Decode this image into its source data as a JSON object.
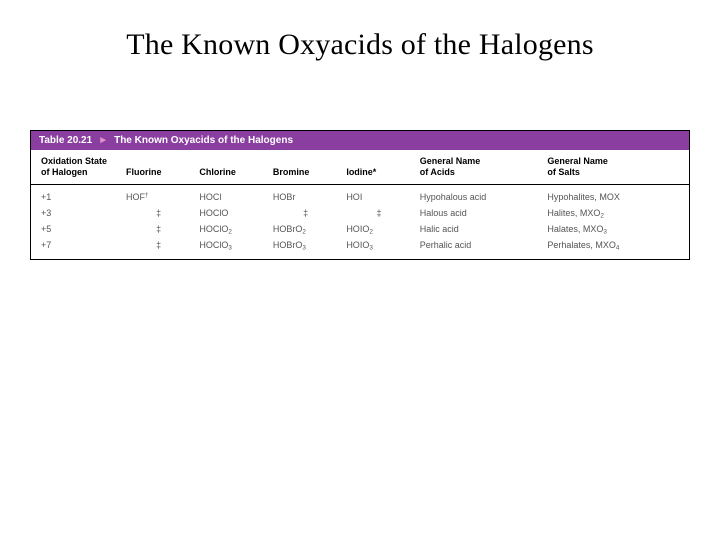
{
  "slide": {
    "title": "The Known Oxyacids of the Halogens"
  },
  "table": {
    "number": "Table 20.21",
    "caption_title": "The Known Oxyacids of the Halogens",
    "header_bg": "#8a3fa0",
    "header_fg": "#ffffff",
    "arrow_color": "#e48fd0",
    "columns": [
      "Oxidation State of Halogen",
      "Fluorine",
      "Chlorine",
      "Bromine",
      "Iodine*",
      "General Name of Acids",
      "General Name of Salts"
    ],
    "rows": [
      {
        "oxidation": "+1",
        "fluorine": "HOF†",
        "chlorine": "HOCl",
        "bromine": "HOBr",
        "iodine": "HOI",
        "acid_name": "Hypohalous acid",
        "salt_name": "Hypohalites, MOX"
      },
      {
        "oxidation": "+3",
        "fluorine": "‡",
        "chlorine": "HOClO",
        "bromine": "‡",
        "iodine": "‡",
        "acid_name": "Halous acid",
        "salt_name": "Halites, MXO₂"
      },
      {
        "oxidation": "+5",
        "fluorine": "‡",
        "chlorine": "HOClO₂",
        "bromine": "HOBrO₂",
        "iodine": "HOIO₂",
        "acid_name": "Halic acid",
        "salt_name": "Halates, MXO₃"
      },
      {
        "oxidation": "+7",
        "fluorine": "‡",
        "chlorine": "HOClO₃",
        "bromine": "HOBrO₃",
        "iodine": "HOIO₃",
        "acid_name": "Perhalic acid",
        "salt_name": "Perhalates, MXO₄"
      }
    ]
  }
}
